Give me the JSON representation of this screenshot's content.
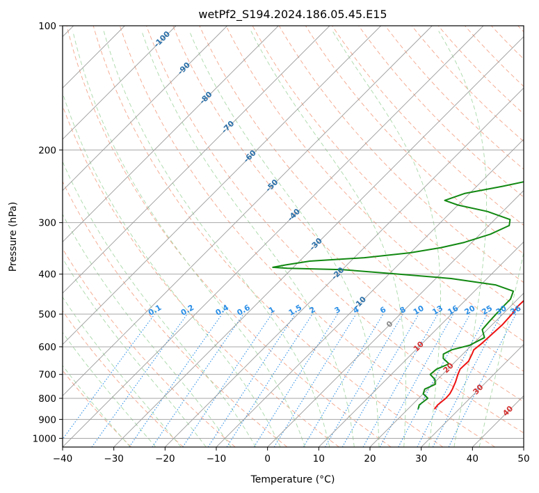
{
  "chart_data": {
    "type": "line",
    "diagram": "skew-T log-P",
    "title": "wetPf2_S194.2024.186.05.45.E15",
    "xlabel": "Temperature (°C)",
    "ylabel": "Pressure (hPa)",
    "xlim": [
      -40,
      50
    ],
    "ylim": [
      1050,
      100
    ],
    "y_scale": "log",
    "x_ticks": [
      -40,
      -30,
      -20,
      -10,
      0,
      10,
      20,
      30,
      40,
      50
    ],
    "y_ticks": [
      100,
      200,
      300,
      400,
      500,
      600,
      700,
      800,
      900,
      1000
    ],
    "grid": true,
    "colors": {
      "temperature": "#ee1111",
      "dewpoint": "#118811",
      "isotherms": "#9a9a9a",
      "dry_adiabats": "#f4a58a",
      "moist_adiabats": "#a8d8a8",
      "mixing_ratio": "#2a8ee6",
      "isotherm_labels": "#2a6fa8",
      "moist_labels": "#d32f2f",
      "zero_label": "#888888"
    },
    "isotherm_labels": [
      "-100",
      "-90",
      "-80",
      "-70",
      "-60",
      "-50",
      "-40",
      "-30",
      "-20",
      "-10",
      "0",
      "10",
      "20",
      "30",
      "40"
    ],
    "mixing_ratio_labels": [
      "0.1",
      "0.2",
      "0.4",
      "0.6",
      "1",
      "1.5",
      "2",
      "3",
      "4",
      "6",
      "8",
      "10",
      "13",
      "16",
      "20",
      "25",
      "30",
      "36"
    ],
    "series": [
      {
        "key": "temperature",
        "points": [
          [
            850,
            25.2
          ],
          [
            830,
            25.0
          ],
          [
            800,
            25.3
          ],
          [
            780,
            25.2
          ],
          [
            760,
            24.8
          ],
          [
            730,
            24.0
          ],
          [
            700,
            23.0
          ],
          [
            680,
            22.4
          ],
          [
            650,
            22.5
          ],
          [
            625,
            21.8
          ],
          [
            610,
            21.3
          ],
          [
            590,
            21.6
          ],
          [
            560,
            21.8
          ],
          [
            530,
            22.0
          ],
          [
            500,
            21.8
          ],
          [
            480,
            21.4
          ],
          [
            460,
            21.5
          ],
          [
            440,
            21.8
          ],
          [
            410,
            21.8
          ],
          [
            385,
            21.0
          ],
          [
            370,
            18.8
          ],
          [
            350,
            16.0
          ],
          [
            330,
            13.6
          ],
          [
            310,
            11.8
          ],
          [
            290,
            10.6
          ],
          [
            270,
            9.6
          ],
          [
            250,
            8.5
          ],
          [
            230,
            6.8
          ],
          [
            215,
            5.0
          ],
          [
            200,
            4.0
          ],
          [
            190,
            4.0
          ],
          [
            175,
            3.6
          ],
          [
            160,
            2.4
          ],
          [
            150,
            1.8
          ],
          [
            140,
            1.0
          ],
          [
            130,
            0.2
          ],
          [
            120,
            -0.6
          ],
          [
            112,
            -1.6
          ],
          [
            105,
            -1.4
          ],
          [
            100,
            -1.0
          ]
        ]
      },
      {
        "key": "dewpoint",
        "points": [
          [
            850,
            22.0
          ],
          [
            830,
            21.4
          ],
          [
            800,
            21.8
          ],
          [
            780,
            20.0
          ],
          [
            760,
            19.4
          ],
          [
            740,
            20.5
          ],
          [
            720,
            19.5
          ],
          [
            700,
            17.6
          ],
          [
            680,
            17.8
          ],
          [
            660,
            19.2
          ],
          [
            640,
            17.0
          ],
          [
            625,
            16.2
          ],
          [
            610,
            17.0
          ],
          [
            595,
            19.6
          ],
          [
            570,
            21.0
          ],
          [
            545,
            19.0
          ],
          [
            520,
            18.8
          ],
          [
            500,
            18.7
          ],
          [
            480,
            18.6
          ],
          [
            460,
            18.6
          ],
          [
            440,
            17.6
          ],
          [
            425,
            13.0
          ],
          [
            410,
            3.0
          ],
          [
            400,
            -8.0
          ],
          [
            390,
            -20.0
          ],
          [
            387,
            -31.0
          ],
          [
            385,
            -34.0
          ],
          [
            380,
            -32.0
          ],
          [
            372,
            -28.0
          ],
          [
            365,
            -18.0
          ],
          [
            355,
            -10.0
          ],
          [
            345,
            -5.0
          ],
          [
            335,
            -1.5
          ],
          [
            320,
            2.0
          ],
          [
            305,
            4.0
          ],
          [
            295,
            3.0
          ],
          [
            282,
            -3.0
          ],
          [
            272,
            -10.0
          ],
          [
            265,
            -13.5
          ],
          [
            255,
            -11.0
          ],
          [
            245,
            -5.0
          ],
          [
            235,
            0.5
          ],
          [
            225,
            2.0
          ],
          [
            215,
            1.0
          ],
          [
            205,
            0.8
          ],
          [
            198,
            1.6
          ],
          [
            190,
            0.5
          ],
          [
            180,
            -3.0
          ],
          [
            170,
            -6.0
          ],
          [
            160,
            -6.2
          ],
          [
            150,
            -4.0
          ],
          [
            140,
            -2.2
          ],
          [
            130,
            -0.8
          ],
          [
            115,
            -0.3
          ],
          [
            107,
            -0.5
          ],
          [
            100,
            0.8
          ]
        ]
      }
    ]
  }
}
